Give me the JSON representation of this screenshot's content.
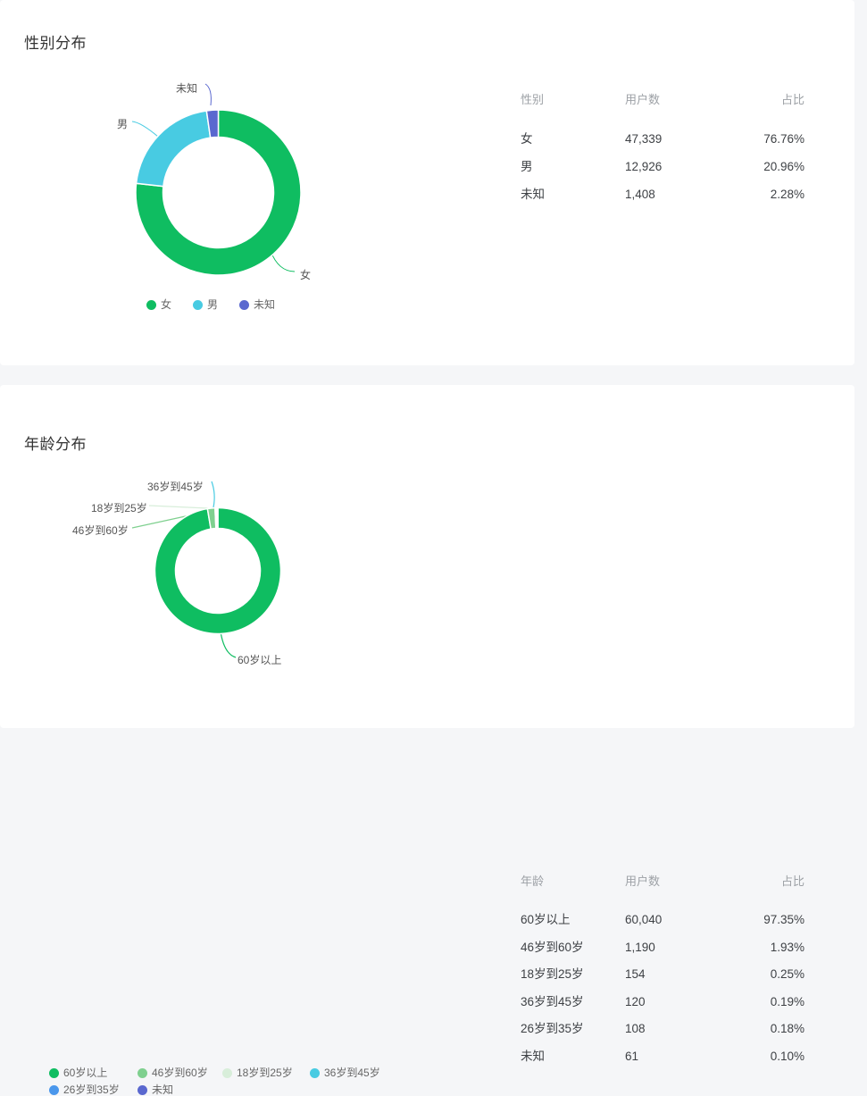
{
  "page": {
    "background": "#f5f6f8",
    "card_background": "#ffffff"
  },
  "chart_data": [
    {
      "type": "pie",
      "subtype": "donut",
      "title": "性别分布",
      "categories": [
        "女",
        "男",
        "未知"
      ],
      "values": [
        47339,
        12926,
        1408
      ],
      "percent_labels": [
        "76.76%",
        "20.96%",
        "2.28%"
      ],
      "colors": [
        "#0fbd61",
        "#48cbe2",
        "#5a68cf"
      ],
      "legend_position": "bottom",
      "start_angle": "12-o'clock clockwise",
      "callout_labels": [
        "女",
        "男",
        "未知"
      ]
    },
    {
      "type": "pie",
      "subtype": "donut",
      "title": "年龄分布",
      "categories": [
        "60岁以上",
        "46岁到60岁",
        "18岁到25岁",
        "36岁到45岁",
        "26岁到35岁",
        "未知"
      ],
      "values": [
        60040,
        1190,
        154,
        120,
        108,
        61
      ],
      "percent_labels": [
        "97.35%",
        "1.93%",
        "0.25%",
        "0.19%",
        "0.18%",
        "0.10%"
      ],
      "colors": [
        "#0fbd61",
        "#7fd08f",
        "#d8eeda",
        "#48cbe2",
        "#4a97ec",
        "#5a68cf"
      ],
      "legend_position": "bottom",
      "start_angle": "12-o'clock clockwise",
      "callout_labels": [
        "60岁以上",
        "46岁到60岁",
        "18岁到25岁",
        "36岁到45岁"
      ]
    }
  ],
  "gender_section": {
    "title": "性别分布",
    "table": {
      "headers": {
        "col1": "性别",
        "col2": "用户数",
        "col3": "占比"
      },
      "rows": [
        {
          "label": "女",
          "count": "47,339",
          "percent": "76.76%"
        },
        {
          "label": "男",
          "count": "12,926",
          "percent": "20.96%"
        },
        {
          "label": "未知",
          "count": "1,408",
          "percent": "2.28%"
        }
      ]
    }
  },
  "age_section": {
    "title": "年龄分布",
    "table": {
      "headers": {
        "col1": "年龄",
        "col2": "用户数",
        "col3": "占比"
      },
      "rows": [
        {
          "label": "60岁以上",
          "count": "60,040",
          "percent": "97.35%"
        },
        {
          "label": "46岁到60岁",
          "count": "1,190",
          "percent": "1.93%"
        },
        {
          "label": "18岁到25岁",
          "count": "154",
          "percent": "0.25%"
        },
        {
          "label": "36岁到45岁",
          "count": "120",
          "percent": "0.19%"
        },
        {
          "label": "26岁到35岁",
          "count": "108",
          "percent": "0.18%"
        },
        {
          "label": "未知",
          "count": "61",
          "percent": "0.10%"
        }
      ]
    }
  }
}
